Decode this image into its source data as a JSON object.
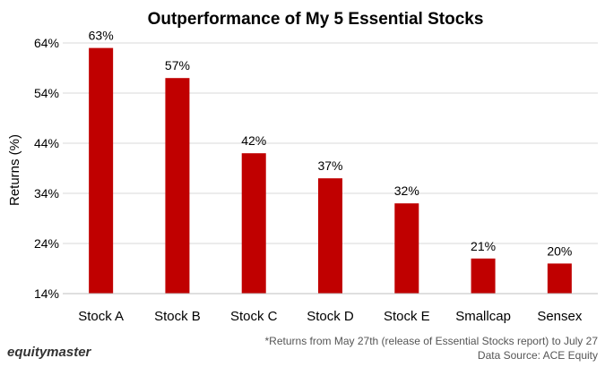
{
  "colors": {
    "bar": "#c00000",
    "grid": "#d9d9d9",
    "axis": "#bfbfbf"
  },
  "chart_data": {
    "type": "bar",
    "title": "Outperformance  of My 5 Essential Stocks",
    "ylabel": "Returns (%)",
    "xlabel": "",
    "categories": [
      "Stock A",
      "Stock B",
      "Stock C",
      "Stock D",
      "Stock E",
      "Smallcap",
      "Sensex"
    ],
    "values": [
      63,
      57,
      42,
      37,
      32,
      21,
      20
    ],
    "data_labels": [
      "63%",
      "57%",
      "42%",
      "37%",
      "32%",
      "21%",
      "20%"
    ],
    "ylim": [
      14,
      64
    ],
    "yticks": [
      14,
      24,
      34,
      44,
      54,
      64
    ],
    "ytick_labels": [
      "14%",
      "24%",
      "34%",
      "44%",
      "54%",
      "64%"
    ],
    "grid": true,
    "legend": "none"
  },
  "footer": {
    "brand": "equitymaster",
    "note": "*Returns from May 27th (release of Essential Stocks report) to July 27",
    "source": "Data Source: ACE Equity"
  }
}
